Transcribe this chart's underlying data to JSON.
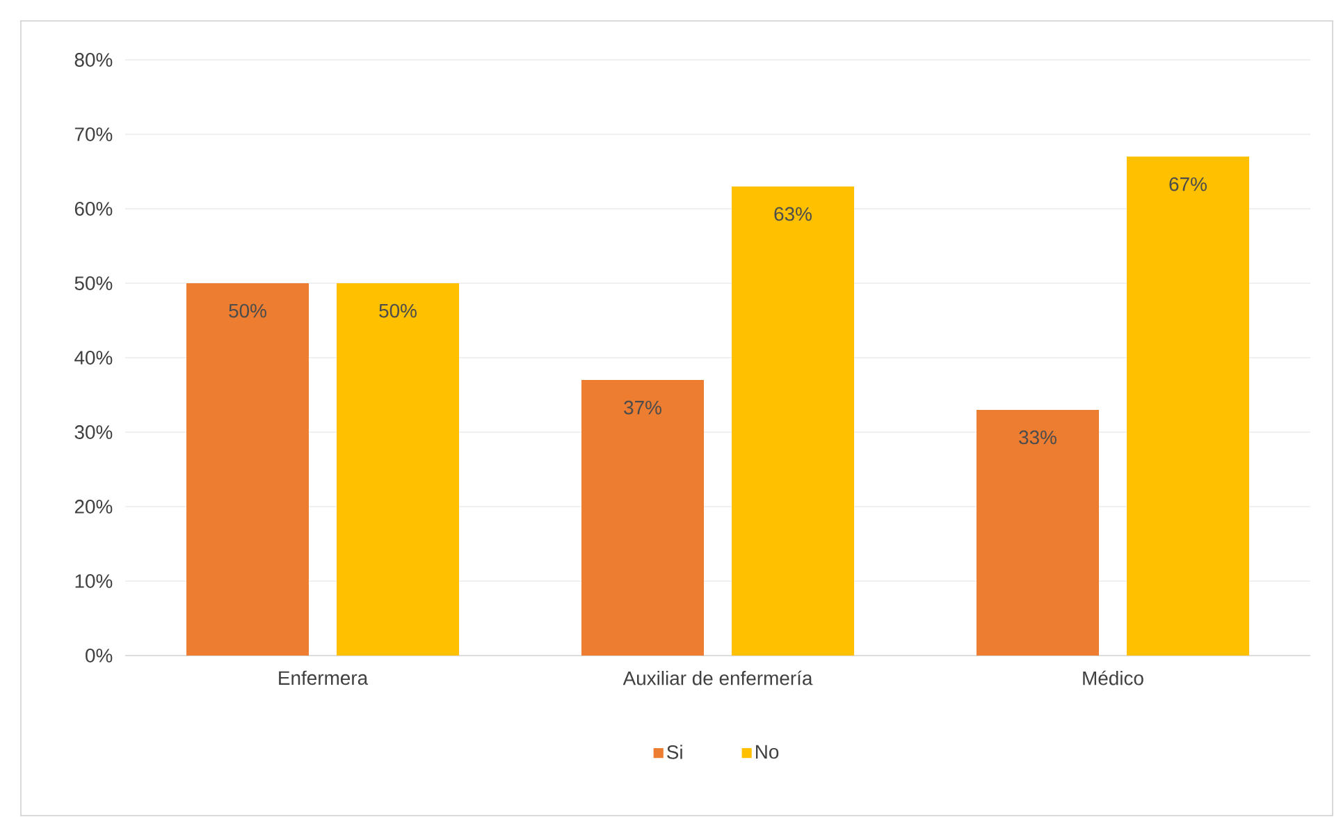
{
  "chart_data": {
    "type": "bar",
    "categories": [
      "Enfermera",
      "Auxiliar de enfermería",
      "Médico"
    ],
    "series": [
      {
        "name": "Si",
        "color": "#ed7d31",
        "values": [
          50,
          37,
          33
        ],
        "value_labels": [
          "50%",
          "37%",
          "33%"
        ]
      },
      {
        "name": "No",
        "color": "#ffc000",
        "values": [
          50,
          63,
          67
        ],
        "value_labels": [
          "50%",
          "63%",
          "67%"
        ]
      }
    ],
    "ylim": [
      0,
      80
    ],
    "yticks": [
      {
        "value": 0,
        "label": "0%"
      },
      {
        "value": 10,
        "label": "10%"
      },
      {
        "value": 20,
        "label": "20%"
      },
      {
        "value": 30,
        "label": "30%"
      },
      {
        "value": 40,
        "label": "40%"
      },
      {
        "value": 50,
        "label": "50%"
      },
      {
        "value": 60,
        "label": "60%"
      },
      {
        "value": 70,
        "label": "70%"
      },
      {
        "value": 80,
        "label": "80%"
      }
    ],
    "grid": "y",
    "legend": "bottom"
  }
}
